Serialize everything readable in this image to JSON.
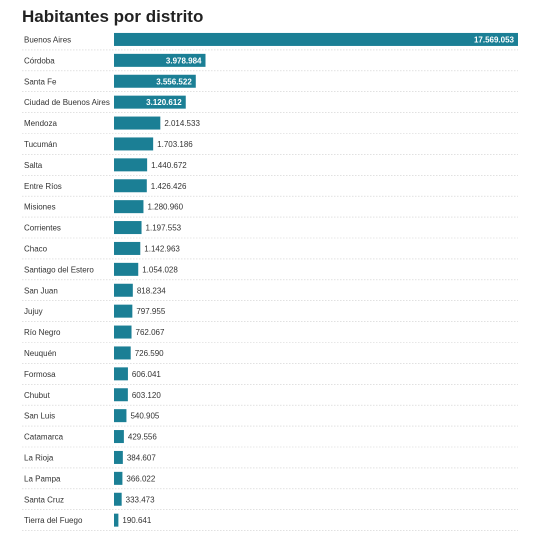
{
  "chart_data": {
    "type": "bar",
    "orientation": "horizontal",
    "title": "Habitantes por distrito",
    "xlabel": "",
    "ylabel": "",
    "bar_color": "#1b7f95",
    "categories": [
      "Buenos Aires",
      "Córdoba",
      "Santa Fe",
      "Ciudad de Buenos Aires",
      "Mendoza",
      "Tucumán",
      "Salta",
      "Entre Ríos",
      "Misiones",
      "Corrientes",
      "Chaco",
      "Santiago del Estero",
      "San Juan",
      "Jujuy",
      "Río Negro",
      "Neuquén",
      "Formosa",
      "Chubut",
      "San Luis",
      "Catamarca",
      "La Rioja",
      "La Pampa",
      "Santa Cruz",
      "Tierra del Fuego"
    ],
    "values": [
      17569053,
      3978984,
      3556522,
      3120612,
      2014533,
      1703186,
      1440672,
      1426426,
      1280960,
      1197553,
      1142963,
      1054028,
      818234,
      797955,
      762067,
      726590,
      606041,
      603120,
      540905,
      429556,
      384607,
      366022,
      333473,
      190641
    ],
    "value_labels": [
      "17.569.053",
      "3.978.984",
      "3.556.522",
      "3.120.612",
      "2.014.533",
      "1.703.186",
      "1.440.672",
      "1.426.426",
      "1.280.960",
      "1.197.553",
      "1.142.963",
      "1.054.028",
      "818.234",
      "797.955",
      "762.067",
      "726.590",
      "606.041",
      "603.120",
      "540.905",
      "429.556",
      "384.607",
      "366.022",
      "333.473",
      "190.641"
    ],
    "xlim": [
      0,
      17569053
    ],
    "grid": false,
    "legend": "none"
  }
}
